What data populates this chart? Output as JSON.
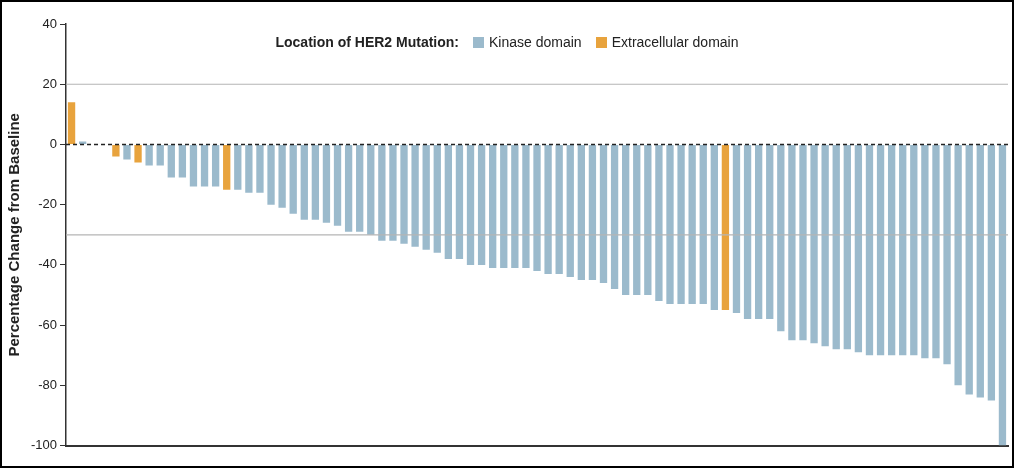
{
  "chart_data": {
    "type": "bar",
    "ylabel": "Percentage Change from Baseline",
    "legend_title": "Location of HER2 Mutation:",
    "legend": "top",
    "grid": false,
    "categories": [
      null,
      null,
      null,
      null,
      null,
      null,
      null,
      null,
      null,
      null,
      null,
      null,
      null,
      null,
      null,
      null,
      null,
      null,
      null,
      null,
      null,
      null,
      null,
      null,
      null,
      null,
      null,
      null,
      null,
      null,
      null,
      null,
      null,
      null,
      null,
      null,
      null,
      null,
      null,
      null,
      null,
      null,
      null,
      null,
      null,
      null,
      null,
      null,
      null,
      null,
      null,
      null,
      null,
      null,
      null,
      null,
      null,
      null,
      null,
      null,
      null,
      null,
      null,
      null,
      null,
      null,
      null,
      null,
      null,
      null,
      null,
      null,
      null,
      null,
      null,
      null,
      null,
      null,
      null,
      null,
      null,
      null,
      null,
      null,
      null
    ],
    "series": [
      {
        "name": "Kinase domain",
        "color": "#9bbacc",
        "values": [
          null,
          1,
          0,
          0,
          null,
          -5,
          null,
          -7,
          -7,
          -11,
          -11,
          -14,
          -14,
          -14,
          null,
          -15,
          -16,
          -16,
          -20,
          -21,
          -23,
          -25,
          -25,
          -26,
          -27,
          -29,
          -29,
          -30,
          -32,
          -32,
          -33,
          -34,
          -35,
          -36,
          -38,
          -38,
          -40,
          -40,
          -41,
          -41,
          -41,
          -41,
          -42,
          -43,
          -43,
          -44,
          -45,
          -45,
          -46,
          -48,
          -50,
          -50,
          -50,
          -52,
          -53,
          -53,
          -53,
          -53,
          -55,
          null,
          -56,
          -58,
          -58,
          -58,
          -62,
          -65,
          -65,
          -66,
          -67,
          -68,
          -68,
          -69,
          -70,
          -70,
          -70,
          -70,
          -70,
          -71,
          -71,
          -73,
          -80,
          -83,
          -84,
          -85,
          -100
        ]
      },
      {
        "name": "Extracellular domain",
        "color": "#e8a33d",
        "values": [
          14,
          null,
          null,
          null,
          -4,
          null,
          -6,
          null,
          null,
          null,
          null,
          null,
          null,
          null,
          -15,
          null,
          null,
          null,
          null,
          null,
          null,
          null,
          null,
          null,
          null,
          null,
          null,
          null,
          null,
          null,
          null,
          null,
          null,
          null,
          null,
          null,
          null,
          null,
          null,
          null,
          null,
          null,
          null,
          null,
          null,
          null,
          null,
          null,
          null,
          null,
          null,
          null,
          null,
          null,
          null,
          null,
          null,
          null,
          null,
          -55,
          null,
          null,
          null,
          null,
          null,
          null,
          null,
          null,
          null,
          null,
          null,
          null,
          null,
          null,
          null,
          null,
          null,
          null,
          null,
          null,
          null,
          null,
          null,
          null,
          null
        ]
      }
    ],
    "ylim": [
      -100,
      40
    ],
    "yticks": [
      -100,
      -80,
      -60,
      -40,
      -20,
      0,
      20,
      40
    ],
    "ref_lines": [
      {
        "axis": "y",
        "value": 0,
        "color": "#222222",
        "line_style": "dashed"
      },
      {
        "axis": "y",
        "value": 20,
        "color": "#b5b5b5",
        "line_style": "solid"
      },
      {
        "axis": "y",
        "value": -30,
        "color": "#b5b5b5",
        "line_style": "solid"
      }
    ]
  }
}
